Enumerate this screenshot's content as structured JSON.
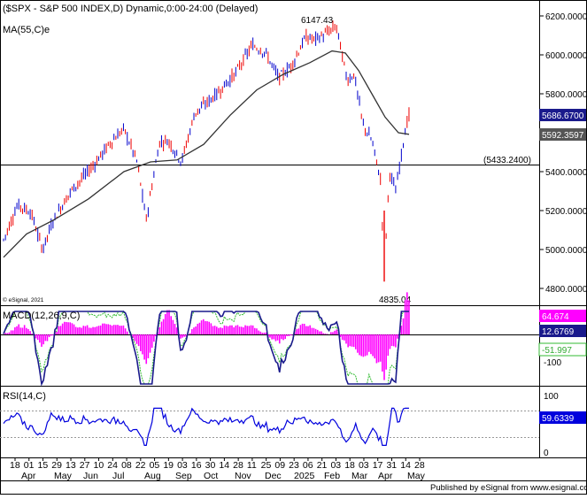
{
  "titles": {
    "price": "($SPX - S&P 500 INDEX,D) Dynamic,0:00-24:00 (Delayed)",
    "ma": "MA(55,C)e",
    "macd": "MACD(12,26,9,C)",
    "rsi": "RSI(14,C)",
    "copyright": "© eSignal, 2021",
    "footer": "Published by eSignal from www.esignal.com"
  },
  "price_axis": {
    "ticks": [
      "6200.0000",
      "6000.0000",
      "5800.0000",
      "5600.0000",
      "5400.0000",
      "5200.0000",
      "5000.0000",
      "4800.0000"
    ]
  },
  "price_tags": {
    "last": "5686.6700",
    "ma": "5592.3597"
  },
  "annotations": {
    "high": "6147.43",
    "low": "4835.04",
    "level": "(5433.2400)"
  },
  "macd_axis": {
    "hist_value": "64.674",
    "macd_value": "12.6769",
    "signal_value": "-51.997",
    "tick_minus100": "-100"
  },
  "rsi_axis": {
    "tick_100": "100",
    "value": "59.6339",
    "tick_0": "0"
  },
  "dates": {
    "days": [
      "18",
      "01",
      "15",
      "29",
      "13",
      "27",
      "10",
      "24",
      "08",
      "22",
      "05",
      "19",
      "03",
      "16",
      "30",
      "14",
      "28",
      "11",
      "25",
      "09",
      "23",
      "06",
      "21",
      "03",
      "18",
      "03",
      "17",
      "31",
      "14",
      "28"
    ],
    "months": [
      "Apr",
      "May",
      "Jun",
      "Jul",
      "Aug",
      "Sep",
      "Oct",
      "Nov",
      "Dec",
      "2025",
      "Feb",
      "Mar",
      "Apr",
      "May"
    ]
  },
  "colors": {
    "up": "#0000cc",
    "down": "#ee0000",
    "ma": "#333333",
    "macd_hist": "#ff00ff",
    "signal": "#33bb33",
    "rsi": "#0000dd",
    "tag_last": "#1a1a8c",
    "tag_ma": "#555555"
  },
  "chart_data": {
    "type": "candlestick",
    "symbol": "$SPX",
    "y_range": [
      4700,
      6300
    ],
    "high": 6147.43,
    "low": 4835.04,
    "horizontal_level": 5433.24,
    "last": 5686.67,
    "ma55": 5592.3597,
    "macd": {
      "hist": 64.674,
      "macd": 12.6769,
      "signal": -51.997
    },
    "rsi14": 59.6339
  }
}
